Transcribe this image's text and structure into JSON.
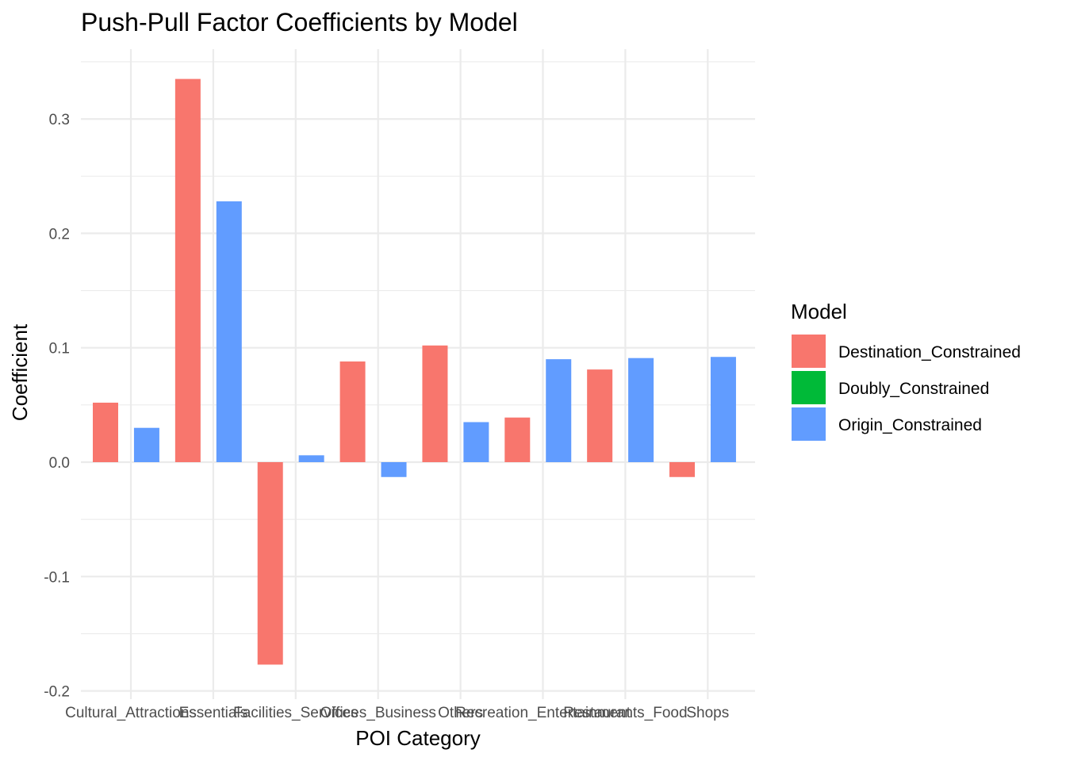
{
  "chart_data": {
    "type": "bar",
    "title": "Push-Pull Factor Coefficients by Model",
    "xlabel": "POI Category",
    "ylabel": "Coefficient",
    "ylim": [
      -0.2,
      0.35
    ],
    "yticks": [
      -0.2,
      -0.1,
      0.0,
      0.1,
      0.2,
      0.3
    ],
    "ytick_labels": [
      "-0.2",
      "-0.1",
      "0.0",
      "0.1",
      "0.2",
      "0.3"
    ],
    "grid": true,
    "legend": {
      "title": "Model",
      "placement": "right",
      "entries": [
        {
          "name": "Destination_Constrained",
          "color": "#F8766D"
        },
        {
          "name": "Doubly_Constrained",
          "color": "#00BA38"
        },
        {
          "name": "Origin_Constrained",
          "color": "#619CFF"
        }
      ]
    },
    "categories": [
      "Cultural_Attractions",
      "Essentials",
      "Facilities_Services",
      "Offices_Business",
      "Others",
      "Recreation_Entertainment",
      "Restaurants_Food",
      "Shops"
    ],
    "bars": [
      {
        "slot": 1,
        "model": "Destination_Constrained",
        "value": 0.052
      },
      {
        "slot": 2,
        "model": "Origin_Constrained",
        "value": 0.03
      },
      {
        "slot": 3,
        "model": "Destination_Constrained",
        "value": 0.335
      },
      {
        "slot": 4,
        "model": "Origin_Constrained",
        "value": 0.228
      },
      {
        "slot": 5,
        "model": "Destination_Constrained",
        "value": -0.177
      },
      {
        "slot": 6,
        "model": "Origin_Constrained",
        "value": 0.006
      },
      {
        "slot": 7,
        "model": "Destination_Constrained",
        "value": 0.088
      },
      {
        "slot": 8,
        "model": "Origin_Constrained",
        "value": -0.013
      },
      {
        "slot": 9,
        "model": "Destination_Constrained",
        "value": 0.102
      },
      {
        "slot": 10,
        "model": "Origin_Constrained",
        "value": 0.035
      },
      {
        "slot": 11,
        "model": "Destination_Constrained",
        "value": 0.039
      },
      {
        "slot": 12,
        "model": "Origin_Constrained",
        "value": 0.09
      },
      {
        "slot": 13,
        "model": "Destination_Constrained",
        "value": 0.081
      },
      {
        "slot": 14,
        "model": "Origin_Constrained",
        "value": 0.091
      },
      {
        "slot": 15,
        "model": "Destination_Constrained",
        "value": -0.013
      },
      {
        "slot": 16,
        "model": "Origin_Constrained",
        "value": 0.092
      }
    ]
  }
}
